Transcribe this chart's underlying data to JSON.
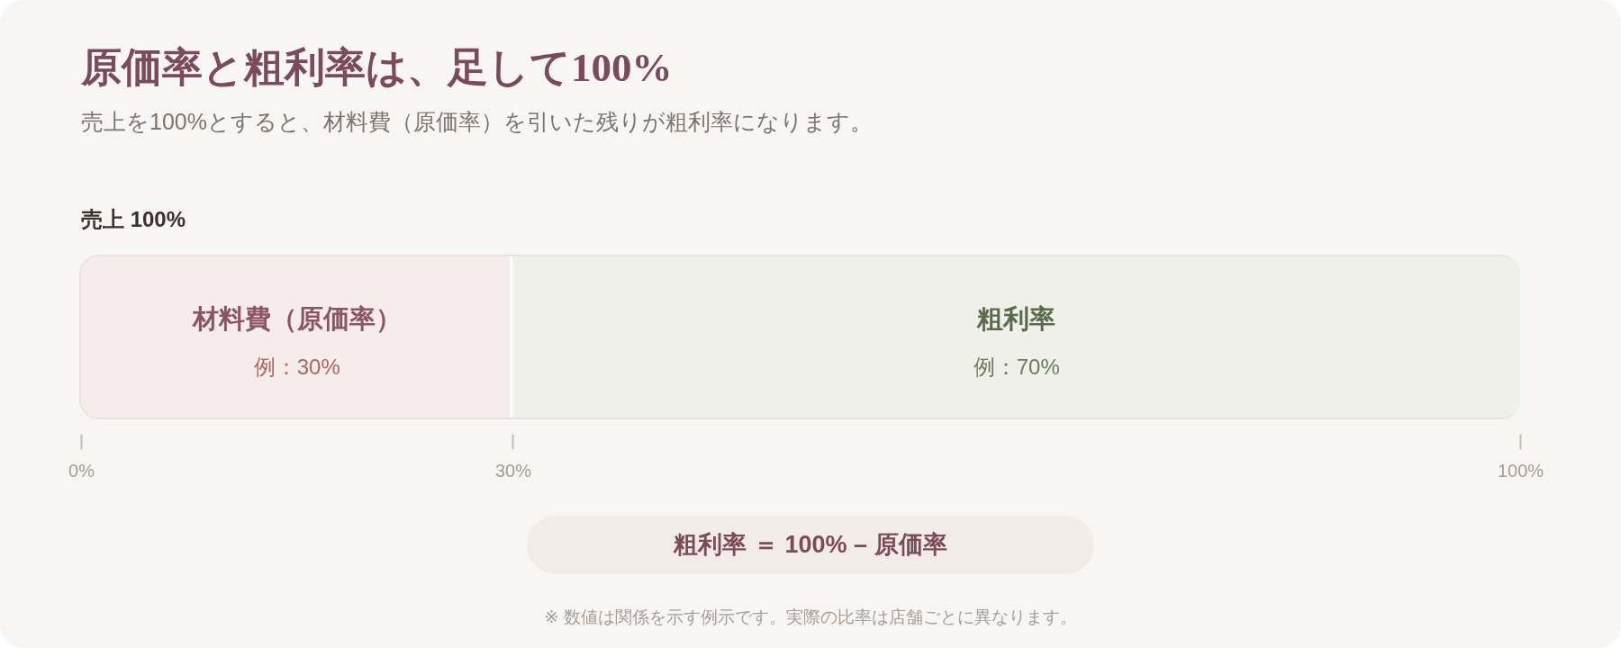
{
  "chart_data": {
    "type": "bar",
    "title": "原価率と粗利率は、足して100%",
    "subtitle": "売上を100%とすると、材料費（原価率）を引いた残りが粗利率になります。",
    "orientation": "horizontal",
    "stacked": true,
    "categories": [
      "売上 100%"
    ],
    "series": [
      {
        "name": "材料費（原価率）",
        "color": "#f6ecec",
        "values": [
          30
        ],
        "value_labels": [
          "例：30%"
        ]
      },
      {
        "name": "粗利率",
        "color": "#eef0e9",
        "values": [
          70
        ],
        "value_labels": [
          "例：70%"
        ]
      }
    ],
    "xlim": [
      0,
      100
    ],
    "xticks": [
      {
        "value": 0,
        "label": "0%"
      },
      {
        "value": 30,
        "label": "30%"
      },
      {
        "value": 100,
        "label": "100%"
      }
    ],
    "annotations": [
      "粗利率 ＝ 100% – 原価率",
      "※ 数値は関係を示す例示です。実際の比率は店舗ごとに異なります。"
    ]
  }
}
